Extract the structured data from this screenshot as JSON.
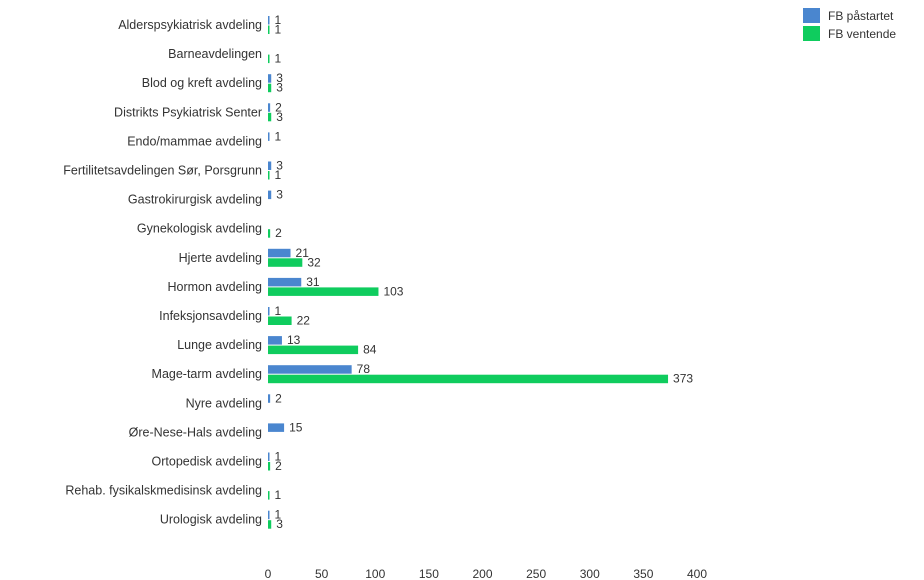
{
  "chart_data": {
    "type": "bar",
    "orientation": "horizontal",
    "title": "",
    "xlabel": "",
    "ylabel": "",
    "xlim": [
      0,
      400
    ],
    "ticks": [
      0,
      50,
      100,
      150,
      200,
      250,
      300,
      350,
      400
    ],
    "grid": false,
    "legend_position": "top-right",
    "categories": [
      "Alderspsykiatrisk avdeling",
      "Barneavdelingen",
      "Blod og kreft avdeling",
      "Distrikts Psykiatrisk Senter",
      "Endo/mammae avdeling",
      "Fertilitetsavdelingen Sør, Porsgrunn",
      "Gastrokirurgisk avdeling",
      "Gynekologisk avdeling",
      "Hjerte avdeling",
      "Hormon avdeling",
      "Infeksjonsavdeling",
      "Lunge avdeling",
      "Mage-tarm avdeling",
      "Nyre avdeling",
      "Øre-Nese-Hals avdeling",
      "Ortopedisk avdeling",
      "Rehab. fysikalskmedisinsk avdeling",
      "Urologisk avdeling"
    ],
    "series": [
      {
        "name": "FB påstartet",
        "color": "#4a86cf",
        "values": [
          1,
          null,
          3,
          2,
          1,
          3,
          3,
          null,
          21,
          31,
          1,
          13,
          78,
          2,
          15,
          1,
          null,
          1
        ]
      },
      {
        "name": "FB ventende",
        "color": "#0fcc5e",
        "values": [
          1,
          1,
          3,
          3,
          null,
          1,
          null,
          2,
          32,
          103,
          22,
          84,
          373,
          null,
          null,
          2,
          1,
          3
        ]
      }
    ]
  }
}
